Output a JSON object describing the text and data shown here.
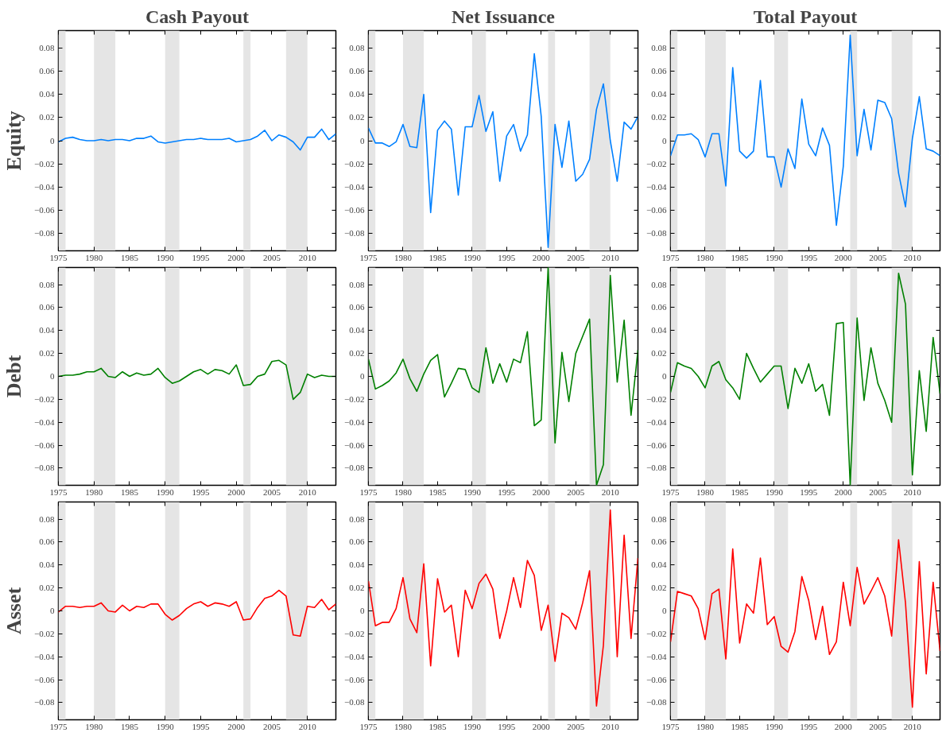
{
  "chart_data": [
    {
      "type": "line",
      "title": "Cash Payout",
      "ylabel": "Equity",
      "x": [
        1975,
        1976,
        1977,
        1978,
        1979,
        1980,
        1981,
        1982,
        1983,
        1984,
        1985,
        1986,
        1987,
        1988,
        1989,
        1990,
        1991,
        1992,
        1993,
        1994,
        1995,
        1996,
        1997,
        1998,
        1999,
        2000,
        2001,
        2002,
        2003,
        2004,
        2005,
        2006,
        2007,
        2008,
        2009,
        2010,
        2011,
        2012,
        2013,
        2014
      ],
      "xlim": [
        1975,
        2014
      ],
      "xticks": [
        1975,
        1980,
        1985,
        1990,
        1995,
        2000,
        2005,
        2010
      ],
      "ylim": [
        -0.095,
        0.095
      ],
      "yticks": [
        {
          "value": -0.08,
          "label": "−0.08"
        },
        {
          "value": -0.06,
          "label": "−0.06"
        },
        {
          "value": -0.04,
          "label": "−0.04"
        },
        {
          "value": -0.02,
          "label": "−0.02"
        },
        0,
        0.02,
        0.04,
        0.06,
        0.08
      ],
      "grid": false,
      "bands": [
        {
          "axis": "x",
          "from": 1975,
          "to": 1976,
          "color": "#e5e5e5"
        },
        {
          "axis": "x",
          "from": 1980,
          "to": 1983,
          "color": "#e5e5e5"
        },
        {
          "axis": "x",
          "from": 1990,
          "to": 1992,
          "color": "#e5e5e5"
        },
        {
          "axis": "x",
          "from": 2001,
          "to": 2002,
          "color": "#e5e5e5"
        },
        {
          "axis": "x",
          "from": 2007,
          "to": 2010,
          "color": "#e5e5e5"
        }
      ],
      "series": [
        {
          "color": "#0080ff",
          "values": [
            -0.001,
            0.002,
            0.003,
            0.001,
            0.0,
            0.0,
            0.001,
            0.0,
            0.001,
            0.001,
            0.0,
            0.002,
            0.002,
            0.004,
            -0.001,
            -0.002,
            -0.001,
            0.0,
            0.001,
            0.001,
            0.002,
            0.001,
            0.001,
            0.001,
            0.002,
            -0.001,
            0.0,
            0.001,
            0.004,
            0.009,
            0.0,
            0.005,
            0.003,
            -0.001,
            -0.008,
            0.003,
            0.003,
            0.01,
            0.001,
            0.006
          ]
        }
      ]
    },
    {
      "type": "line",
      "title": "Net Issuance",
      "x": [
        1975,
        1976,
        1977,
        1978,
        1979,
        1980,
        1981,
        1982,
        1983,
        1984,
        1985,
        1986,
        1987,
        1988,
        1989,
        1990,
        1991,
        1992,
        1993,
        1994,
        1995,
        1996,
        1997,
        1998,
        1999,
        2000,
        2001,
        2002,
        2003,
        2004,
        2005,
        2006,
        2007,
        2008,
        2009,
        2010,
        2011,
        2012,
        2013,
        2014
      ],
      "xlim": [
        1975,
        2014
      ],
      "xticks": [
        1975,
        1980,
        1985,
        1990,
        1995,
        2000,
        2005,
        2010
      ],
      "ylim": [
        -0.095,
        0.095
      ],
      "yticks": [
        {
          "value": -0.08,
          "label": "−0.08"
        },
        {
          "value": -0.06,
          "label": "−0.06"
        },
        {
          "value": -0.04,
          "label": "−0.04"
        },
        {
          "value": -0.02,
          "label": "−0.02"
        },
        0,
        0.02,
        0.04,
        0.06,
        0.08
      ],
      "grid": false,
      "bands": [
        {
          "axis": "x",
          "from": 1975,
          "to": 1976,
          "color": "#e5e5e5"
        },
        {
          "axis": "x",
          "from": 1980,
          "to": 1983,
          "color": "#e5e5e5"
        },
        {
          "axis": "x",
          "from": 1990,
          "to": 1992,
          "color": "#e5e5e5"
        },
        {
          "axis": "x",
          "from": 2001,
          "to": 2002,
          "color": "#e5e5e5"
        },
        {
          "axis": "x",
          "from": 2007,
          "to": 2010,
          "color": "#e5e5e5"
        }
      ],
      "series": [
        {
          "color": "#0080ff",
          "values": [
            0.011,
            -0.002,
            -0.002,
            -0.005,
            -0.001,
            0.014,
            -0.005,
            -0.006,
            0.04,
            -0.062,
            0.009,
            0.017,
            0.01,
            -0.047,
            0.012,
            0.012,
            0.039,
            0.008,
            0.025,
            -0.035,
            0.004,
            0.014,
            -0.009,
            0.005,
            0.075,
            0.021,
            -0.092,
            0.014,
            -0.023,
            0.017,
            -0.035,
            -0.029,
            -0.016,
            0.027,
            0.049,
            0.0,
            -0.035,
            0.016,
            0.01,
            0.021
          ]
        }
      ]
    },
    {
      "type": "line",
      "title": "Total Payout",
      "x": [
        1975,
        1976,
        1977,
        1978,
        1979,
        1980,
        1981,
        1982,
        1983,
        1984,
        1985,
        1986,
        1987,
        1988,
        1989,
        1990,
        1991,
        1992,
        1993,
        1994,
        1995,
        1996,
        1997,
        1998,
        1999,
        2000,
        2001,
        2002,
        2003,
        2004,
        2005,
        2006,
        2007,
        2008,
        2009,
        2010,
        2011,
        2012,
        2013,
        2014
      ],
      "xlim": [
        1975,
        2014
      ],
      "xticks": [
        1975,
        1980,
        1985,
        1990,
        1995,
        2000,
        2005,
        2010
      ],
      "ylim": [
        -0.095,
        0.095
      ],
      "yticks": [
        {
          "value": -0.08,
          "label": "−0.08"
        },
        {
          "value": -0.06,
          "label": "−0.06"
        },
        {
          "value": -0.04,
          "label": "−0.04"
        },
        {
          "value": -0.02,
          "label": "−0.02"
        },
        0,
        0.02,
        0.04,
        0.06,
        0.08
      ],
      "grid": false,
      "bands": [
        {
          "axis": "x",
          "from": 1975,
          "to": 1976,
          "color": "#e5e5e5"
        },
        {
          "axis": "x",
          "from": 1980,
          "to": 1983,
          "color": "#e5e5e5"
        },
        {
          "axis": "x",
          "from": 1990,
          "to": 1992,
          "color": "#e5e5e5"
        },
        {
          "axis": "x",
          "from": 2001,
          "to": 2002,
          "color": "#e5e5e5"
        },
        {
          "axis": "x",
          "from": 2007,
          "to": 2010,
          "color": "#e5e5e5"
        }
      ],
      "series": [
        {
          "color": "#0080ff",
          "values": [
            -0.013,
            0.005,
            0.005,
            0.006,
            0.001,
            -0.014,
            0.006,
            0.006,
            -0.039,
            0.063,
            -0.009,
            -0.015,
            -0.009,
            0.052,
            -0.014,
            -0.014,
            -0.04,
            -0.007,
            -0.024,
            0.036,
            -0.003,
            -0.013,
            0.011,
            -0.004,
            -0.073,
            -0.022,
            0.091,
            -0.013,
            0.027,
            -0.008,
            0.035,
            0.033,
            0.019,
            -0.028,
            -0.057,
            0.002,
            0.038,
            -0.007,
            -0.009,
            -0.013
          ]
        }
      ]
    },
    {
      "type": "line",
      "ylabel": "Debt",
      "x": [
        1975,
        1976,
        1977,
        1978,
        1979,
        1980,
        1981,
        1982,
        1983,
        1984,
        1985,
        1986,
        1987,
        1988,
        1989,
        1990,
        1991,
        1992,
        1993,
        1994,
        1995,
        1996,
        1997,
        1998,
        1999,
        2000,
        2001,
        2002,
        2003,
        2004,
        2005,
        2006,
        2007,
        2008,
        2009,
        2010,
        2011,
        2012,
        2013,
        2014
      ],
      "xlim": [
        1975,
        2014
      ],
      "xticks": [
        1975,
        1980,
        1985,
        1990,
        1995,
        2000,
        2005,
        2010
      ],
      "ylim": [
        -0.095,
        0.095
      ],
      "yticks": [
        {
          "value": -0.08,
          "label": "−0.08"
        },
        {
          "value": -0.06,
          "label": "−0.06"
        },
        {
          "value": -0.04,
          "label": "−0.04"
        },
        {
          "value": -0.02,
          "label": "−0.02"
        },
        0,
        0.02,
        0.04,
        0.06,
        0.08
      ],
      "grid": false,
      "bands": [
        {
          "axis": "x",
          "from": 1975,
          "to": 1976,
          "color": "#e5e5e5"
        },
        {
          "axis": "x",
          "from": 1980,
          "to": 1983,
          "color": "#e5e5e5"
        },
        {
          "axis": "x",
          "from": 1990,
          "to": 1992,
          "color": "#e5e5e5"
        },
        {
          "axis": "x",
          "from": 2001,
          "to": 2002,
          "color": "#e5e5e5"
        },
        {
          "axis": "x",
          "from": 2007,
          "to": 2010,
          "color": "#e5e5e5"
        }
      ],
      "series": [
        {
          "color": "#008000",
          "values": [
            0.0,
            0.001,
            0.001,
            0.002,
            0.004,
            0.004,
            0.007,
            0.0,
            -0.001,
            0.004,
            0.0,
            0.003,
            0.001,
            0.002,
            0.007,
            -0.001,
            -0.006,
            -0.004,
            0.0,
            0.004,
            0.006,
            0.002,
            0.006,
            0.005,
            0.002,
            0.01,
            -0.008,
            -0.007,
            0.0,
            0.002,
            0.013,
            0.014,
            0.01,
            -0.02,
            -0.014,
            0.002,
            -0.001,
            0.001,
            0.0,
            0.0
          ]
        }
      ]
    },
    {
      "type": "line",
      "x": [
        1975,
        1976,
        1977,
        1978,
        1979,
        1980,
        1981,
        1982,
        1983,
        1984,
        1985,
        1986,
        1987,
        1988,
        1989,
        1990,
        1991,
        1992,
        1993,
        1994,
        1995,
        1996,
        1997,
        1998,
        1999,
        2000,
        2001,
        2002,
        2003,
        2004,
        2005,
        2006,
        2007,
        2008,
        2009,
        2010,
        2011,
        2012,
        2013,
        2014
      ],
      "xlim": [
        1975,
        2014
      ],
      "xticks": [
        1975,
        1980,
        1985,
        1990,
        1995,
        2000,
        2005,
        2010
      ],
      "ylim": [
        -0.095,
        0.095
      ],
      "yticks": [
        {
          "value": -0.08,
          "label": "−0.08"
        },
        {
          "value": -0.06,
          "label": "−0.06"
        },
        {
          "value": -0.04,
          "label": "−0.04"
        },
        {
          "value": -0.02,
          "label": "−0.02"
        },
        0,
        0.02,
        0.04,
        0.06,
        0.08
      ],
      "grid": false,
      "bands": [
        {
          "axis": "x",
          "from": 1975,
          "to": 1976,
          "color": "#e5e5e5"
        },
        {
          "axis": "x",
          "from": 1980,
          "to": 1983,
          "color": "#e5e5e5"
        },
        {
          "axis": "x",
          "from": 1990,
          "to": 1992,
          "color": "#e5e5e5"
        },
        {
          "axis": "x",
          "from": 2001,
          "to": 2002,
          "color": "#e5e5e5"
        },
        {
          "axis": "x",
          "from": 2007,
          "to": 2010,
          "color": "#e5e5e5"
        }
      ],
      "series": [
        {
          "color": "#008000",
          "values": [
            0.015,
            -0.011,
            -0.008,
            -0.004,
            0.003,
            0.015,
            -0.002,
            -0.013,
            0.002,
            0.014,
            0.019,
            -0.018,
            -0.006,
            0.007,
            0.006,
            -0.01,
            -0.014,
            0.025,
            -0.006,
            0.011,
            -0.005,
            0.015,
            0.012,
            0.039,
            -0.043,
            -0.038,
            0.095,
            -0.058,
            0.021,
            -0.022,
            0.02,
            0.035,
            0.05,
            -0.095,
            -0.077,
            0.088,
            -0.005,
            0.049,
            -0.034,
            0.023
          ]
        }
      ]
    },
    {
      "type": "line",
      "x": [
        1975,
        1976,
        1977,
        1978,
        1979,
        1980,
        1981,
        1982,
        1983,
        1984,
        1985,
        1986,
        1987,
        1988,
        1989,
        1990,
        1991,
        1992,
        1993,
        1994,
        1995,
        1996,
        1997,
        1998,
        1999,
        2000,
        2001,
        2002,
        2003,
        2004,
        2005,
        2006,
        2007,
        2008,
        2009,
        2010,
        2011,
        2012,
        2013,
        2014
      ],
      "xlim": [
        1975,
        2014
      ],
      "xticks": [
        1975,
        1980,
        1985,
        1990,
        1995,
        2000,
        2005,
        2010
      ],
      "ylim": [
        -0.095,
        0.095
      ],
      "yticks": [
        {
          "value": -0.08,
          "label": "−0.08"
        },
        {
          "value": -0.06,
          "label": "−0.06"
        },
        {
          "value": -0.04,
          "label": "−0.04"
        },
        {
          "value": -0.02,
          "label": "−0.02"
        },
        0,
        0.02,
        0.04,
        0.06,
        0.08
      ],
      "grid": false,
      "bands": [
        {
          "axis": "x",
          "from": 1975,
          "to": 1976,
          "color": "#e5e5e5"
        },
        {
          "axis": "x",
          "from": 1980,
          "to": 1983,
          "color": "#e5e5e5"
        },
        {
          "axis": "x",
          "from": 1990,
          "to": 1992,
          "color": "#e5e5e5"
        },
        {
          "axis": "x",
          "from": 2001,
          "to": 2002,
          "color": "#e5e5e5"
        },
        {
          "axis": "x",
          "from": 2007,
          "to": 2010,
          "color": "#e5e5e5"
        }
      ],
      "series": [
        {
          "color": "#008000",
          "values": [
            -0.014,
            0.012,
            0.009,
            0.007,
            0.0,
            -0.01,
            0.009,
            0.013,
            -0.003,
            -0.01,
            -0.02,
            0.02,
            0.007,
            -0.005,
            0.002,
            0.009,
            0.009,
            -0.028,
            0.007,
            -0.006,
            0.011,
            -0.013,
            -0.007,
            -0.034,
            0.046,
            0.047,
            -0.095,
            0.051,
            -0.021,
            0.025,
            -0.006,
            -0.021,
            -0.04,
            0.09,
            0.063,
            -0.086,
            0.005,
            -0.048,
            0.034,
            -0.015
          ]
        }
      ]
    },
    {
      "type": "line",
      "ylabel": "Asset",
      "x": [
        1975,
        1976,
        1977,
        1978,
        1979,
        1980,
        1981,
        1982,
        1983,
        1984,
        1985,
        1986,
        1987,
        1988,
        1989,
        1990,
        1991,
        1992,
        1993,
        1994,
        1995,
        1996,
        1997,
        1998,
        1999,
        2000,
        2001,
        2002,
        2003,
        2004,
        2005,
        2006,
        2007,
        2008,
        2009,
        2010,
        2011,
        2012,
        2013,
        2014
      ],
      "xlim": [
        1975,
        2014
      ],
      "xticks": [
        1975,
        1980,
        1985,
        1990,
        1995,
        2000,
        2005,
        2010
      ],
      "ylim": [
        -0.095,
        0.095
      ],
      "yticks": [
        {
          "value": -0.08,
          "label": "−0.08"
        },
        {
          "value": -0.06,
          "label": "−0.06"
        },
        {
          "value": -0.04,
          "label": "−0.04"
        },
        {
          "value": -0.02,
          "label": "−0.02"
        },
        0,
        0.02,
        0.04,
        0.06,
        0.08
      ],
      "grid": false,
      "bands": [
        {
          "axis": "x",
          "from": 1975,
          "to": 1976,
          "color": "#e5e5e5"
        },
        {
          "axis": "x",
          "from": 1980,
          "to": 1983,
          "color": "#e5e5e5"
        },
        {
          "axis": "x",
          "from": 1990,
          "to": 1992,
          "color": "#e5e5e5"
        },
        {
          "axis": "x",
          "from": 2001,
          "to": 2002,
          "color": "#e5e5e5"
        },
        {
          "axis": "x",
          "from": 2007,
          "to": 2010,
          "color": "#e5e5e5"
        }
      ],
      "series": [
        {
          "color": "#ff0000",
          "values": [
            -0.001,
            0.004,
            0.004,
            0.003,
            0.004,
            0.004,
            0.007,
            0.0,
            -0.001,
            0.005,
            0.0,
            0.004,
            0.003,
            0.006,
            0.006,
            -0.003,
            -0.008,
            -0.004,
            0.002,
            0.006,
            0.008,
            0.004,
            0.007,
            0.006,
            0.004,
            0.008,
            -0.008,
            -0.007,
            0.003,
            0.011,
            0.013,
            0.018,
            0.013,
            -0.021,
            -0.022,
            0.004,
            0.003,
            0.01,
            0.001,
            0.006
          ]
        }
      ]
    },
    {
      "type": "line",
      "x": [
        1975,
        1976,
        1977,
        1978,
        1979,
        1980,
        1981,
        1982,
        1983,
        1984,
        1985,
        1986,
        1987,
        1988,
        1989,
        1990,
        1991,
        1992,
        1993,
        1994,
        1995,
        1996,
        1997,
        1998,
        1999,
        2000,
        2001,
        2002,
        2003,
        2004,
        2005,
        2006,
        2007,
        2008,
        2009,
        2010,
        2011,
        2012,
        2013,
        2014
      ],
      "xlim": [
        1975,
        2014
      ],
      "xticks": [
        1975,
        1980,
        1985,
        1990,
        1995,
        2000,
        2005,
        2010
      ],
      "ylim": [
        -0.095,
        0.095
      ],
      "yticks": [
        {
          "value": -0.08,
          "label": "−0.08"
        },
        {
          "value": -0.06,
          "label": "−0.06"
        },
        {
          "value": -0.04,
          "label": "−0.04"
        },
        {
          "value": -0.02,
          "label": "−0.02"
        },
        0,
        0.02,
        0.04,
        0.06,
        0.08
      ],
      "grid": false,
      "bands": [
        {
          "axis": "x",
          "from": 1975,
          "to": 1976,
          "color": "#e5e5e5"
        },
        {
          "axis": "x",
          "from": 1980,
          "to": 1983,
          "color": "#e5e5e5"
        },
        {
          "axis": "x",
          "from": 1990,
          "to": 1992,
          "color": "#e5e5e5"
        },
        {
          "axis": "x",
          "from": 2001,
          "to": 2002,
          "color": "#e5e5e5"
        },
        {
          "axis": "x",
          "from": 2007,
          "to": 2010,
          "color": "#e5e5e5"
        }
      ],
      "series": [
        {
          "color": "#ff0000",
          "values": [
            0.026,
            -0.013,
            -0.01,
            -0.01,
            0.002,
            0.029,
            -0.007,
            -0.019,
            0.041,
            -0.048,
            0.028,
            -0.001,
            0.005,
            -0.04,
            0.018,
            0.002,
            0.024,
            0.032,
            0.019,
            -0.024,
            0.0,
            0.029,
            0.003,
            0.044,
            0.031,
            -0.017,
            0.005,
            -0.044,
            -0.002,
            -0.006,
            -0.016,
            0.007,
            0.035,
            -0.083,
            -0.03,
            0.088,
            -0.04,
            0.066,
            -0.024,
            0.046
          ]
        }
      ]
    },
    {
      "type": "line",
      "x": [
        1975,
        1976,
        1977,
        1978,
        1979,
        1980,
        1981,
        1982,
        1983,
        1984,
        1985,
        1986,
        1987,
        1988,
        1989,
        1990,
        1991,
        1992,
        1993,
        1994,
        1995,
        1996,
        1997,
        1998,
        1999,
        2000,
        2001,
        2002,
        2003,
        2004,
        2005,
        2006,
        2007,
        2008,
        2009,
        2010,
        2011,
        2012,
        2013,
        2014
      ],
      "xlim": [
        1975,
        2014
      ],
      "xticks": [
        1975,
        1980,
        1985,
        1990,
        1995,
        2000,
        2005,
        2010
      ],
      "ylim": [
        -0.095,
        0.095
      ],
      "yticks": [
        {
          "value": -0.08,
          "label": "−0.08"
        },
        {
          "value": -0.06,
          "label": "−0.06"
        },
        {
          "value": -0.04,
          "label": "−0.04"
        },
        {
          "value": -0.02,
          "label": "−0.02"
        },
        0,
        0.02,
        0.04,
        0.06,
        0.08
      ],
      "grid": false,
      "bands": [
        {
          "axis": "x",
          "from": 1975,
          "to": 1976,
          "color": "#e5e5e5"
        },
        {
          "axis": "x",
          "from": 1980,
          "to": 1983,
          "color": "#e5e5e5"
        },
        {
          "axis": "x",
          "from": 1990,
          "to": 1992,
          "color": "#e5e5e5"
        },
        {
          "axis": "x",
          "from": 2001,
          "to": 2002,
          "color": "#e5e5e5"
        },
        {
          "axis": "x",
          "from": 2007,
          "to": 2010,
          "color": "#e5e5e5"
        }
      ],
      "series": [
        {
          "color": "#ff0000",
          "values": [
            -0.027,
            0.017,
            0.015,
            0.013,
            0.002,
            -0.025,
            0.015,
            0.019,
            -0.042,
            0.054,
            -0.028,
            0.006,
            -0.002,
            0.046,
            -0.012,
            -0.005,
            -0.031,
            -0.036,
            -0.018,
            0.03,
            0.009,
            -0.025,
            0.004,
            -0.038,
            -0.027,
            0.025,
            -0.013,
            0.038,
            0.006,
            0.017,
            0.029,
            0.013,
            -0.022,
            0.062,
            0.007,
            -0.084,
            0.043,
            -0.055,
            0.025,
            -0.035
          ]
        }
      ]
    }
  ]
}
